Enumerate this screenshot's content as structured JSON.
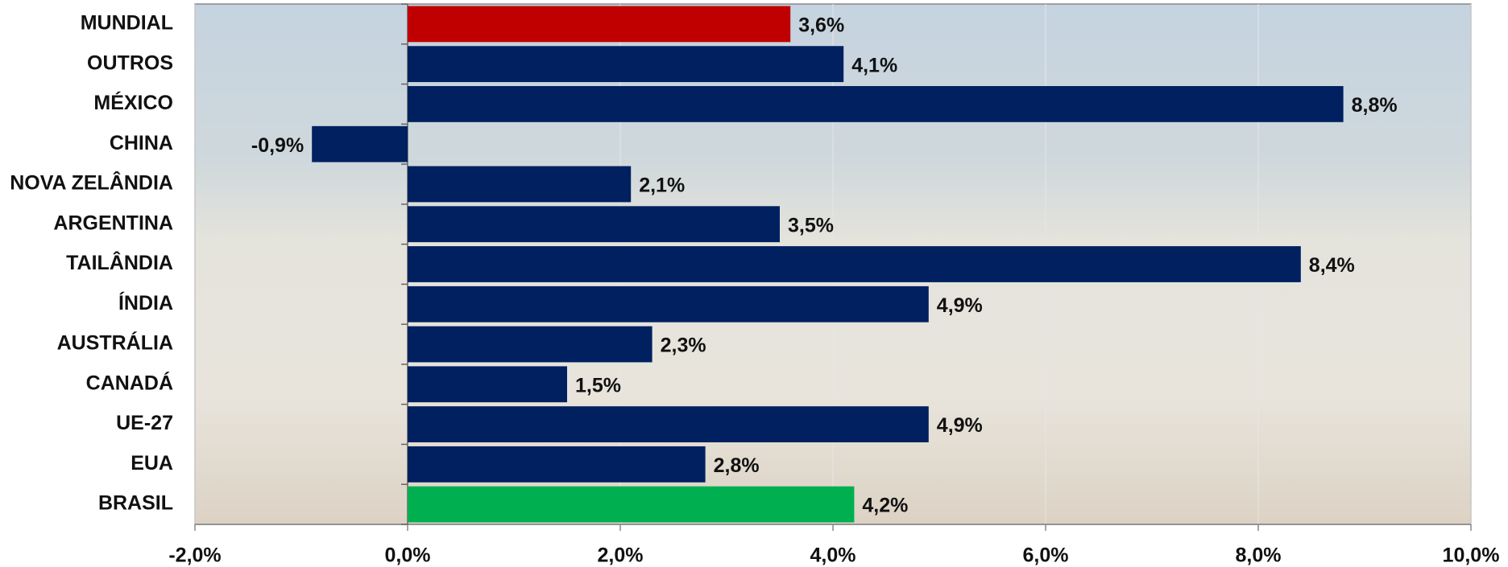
{
  "chart_data": {
    "type": "bar",
    "orientation": "horizontal",
    "categories": [
      "MUNDIAL",
      "OUTROS",
      "MÉXICO",
      "CHINA",
      "NOVA ZELÂNDIA",
      "ARGENTINA",
      "TAILÂNDIA",
      "ÍNDIA",
      "AUSTRÁLIA",
      "CANADÁ",
      "UE-27",
      "EUA",
      "BRASIL"
    ],
    "values": [
      3.6,
      4.1,
      8.8,
      -0.9,
      2.1,
      3.5,
      8.4,
      4.9,
      2.3,
      1.5,
      4.9,
      2.8,
      4.2
    ],
    "value_labels": [
      "3,6%",
      "4,1%",
      "8,8%",
      "-0,9%",
      "2,1%",
      "3,5%",
      "8,4%",
      "4,9%",
      "2,3%",
      "1,5%",
      "4,9%",
      "2,8%",
      "4,2%"
    ],
    "colors": [
      "#c00000",
      "#002060",
      "#002060",
      "#002060",
      "#002060",
      "#002060",
      "#002060",
      "#002060",
      "#002060",
      "#002060",
      "#002060",
      "#002060",
      "#00b050"
    ],
    "xlim": [
      -2,
      10
    ],
    "xticks": [
      {
        "value": -2,
        "label": "-2,0%"
      },
      {
        "value": 0,
        "label": "0,0%"
      },
      {
        "value": 2,
        "label": "2,0%"
      },
      {
        "value": 4,
        "label": "4,0%"
      },
      {
        "value": 6,
        "label": "6,0%"
      },
      {
        "value": 8,
        "label": "8,0%"
      },
      {
        "value": 10,
        "label": "10,0%"
      }
    ],
    "grid": true
  }
}
